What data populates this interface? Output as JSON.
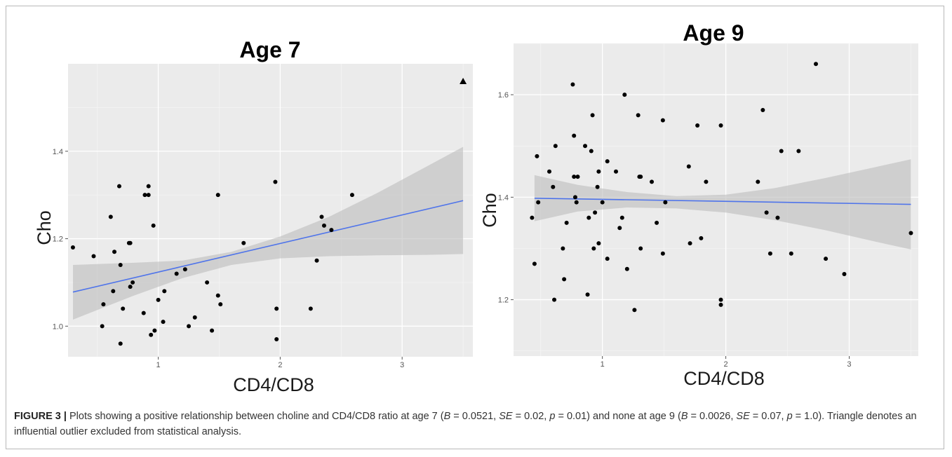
{
  "chart_data": [
    {
      "type": "scatter",
      "title": "Age 7",
      "xlabel": "CD4/CD8",
      "ylabel": "Cho",
      "xlim": [
        0.26,
        3.58
      ],
      "ylim": [
        0.93,
        1.6
      ],
      "x_ticks": [
        1,
        2,
        3
      ],
      "y_ticks": [
        1.0,
        1.2,
        1.4
      ],
      "x_tick_labels": [
        "1",
        "2",
        "3"
      ],
      "y_tick_labels": [
        "1.0",
        "1.2",
        "1.4"
      ],
      "grid": true,
      "background": "#ebebeb",
      "points": [
        [
          0.3,
          1.18
        ],
        [
          0.47,
          1.16
        ],
        [
          0.54,
          1.0
        ],
        [
          0.55,
          1.05
        ],
        [
          0.61,
          1.25
        ],
        [
          0.63,
          1.08
        ],
        [
          0.64,
          1.17
        ],
        [
          0.68,
          1.32
        ],
        [
          0.69,
          1.14
        ],
        [
          0.69,
          0.96
        ],
        [
          0.71,
          1.04
        ],
        [
          0.76,
          1.19
        ],
        [
          0.77,
          1.19
        ],
        [
          0.77,
          1.09
        ],
        [
          0.79,
          1.1
        ],
        [
          0.88,
          1.03
        ],
        [
          0.89,
          1.3
        ],
        [
          0.92,
          1.32
        ],
        [
          0.92,
          1.3
        ],
        [
          0.94,
          0.98
        ],
        [
          0.96,
          1.23
        ],
        [
          0.97,
          0.99
        ],
        [
          1.0,
          1.06
        ],
        [
          1.04,
          1.01
        ],
        [
          1.05,
          1.08
        ],
        [
          1.15,
          1.12
        ],
        [
          1.22,
          1.13
        ],
        [
          1.25,
          1.0
        ],
        [
          1.3,
          1.02
        ],
        [
          1.4,
          1.1
        ],
        [
          1.44,
          0.99
        ],
        [
          1.49,
          1.3
        ],
        [
          1.49,
          1.07
        ],
        [
          1.51,
          1.05
        ],
        [
          1.7,
          1.19
        ],
        [
          1.96,
          1.33
        ],
        [
          1.97,
          1.04
        ],
        [
          1.97,
          0.97
        ],
        [
          2.25,
          1.04
        ],
        [
          2.3,
          1.15
        ],
        [
          2.34,
          1.25
        ],
        [
          2.36,
          1.23
        ],
        [
          2.42,
          1.22
        ],
        [
          2.59,
          1.3
        ]
      ],
      "outlier": [
        3.5,
        1.56
      ],
      "fit": {
        "x": [
          0.3,
          3.5
        ],
        "y": [
          1.078,
          1.287
        ],
        "color": "#4f74ea"
      },
      "ci_band": {
        "x": [
          0.3,
          0.8,
          1.2,
          1.6,
          2.0,
          2.4,
          2.8,
          3.2,
          3.5
        ],
        "lower": [
          1.015,
          1.07,
          1.11,
          1.14,
          1.155,
          1.16,
          1.162,
          1.163,
          1.165
        ],
        "upper": [
          1.14,
          1.145,
          1.15,
          1.17,
          1.205,
          1.25,
          1.305,
          1.365,
          1.41
        ]
      }
    },
    {
      "type": "scatter",
      "title": "Age 9",
      "xlabel": "CD4/CD8",
      "ylabel": "Cho",
      "xlim": [
        0.28,
        3.56
      ],
      "ylim": [
        1.09,
        1.7
      ],
      "x_ticks": [
        1,
        2,
        3
      ],
      "y_ticks": [
        1.2,
        1.4,
        1.6
      ],
      "x_tick_labels": [
        "1",
        "2",
        "3"
      ],
      "y_tick_labels": [
        "1.2",
        "1.4",
        "1.6"
      ],
      "grid": true,
      "background": "#ebebeb",
      "points": [
        [
          0.43,
          1.36
        ],
        [
          0.45,
          1.27
        ],
        [
          0.47,
          1.48
        ],
        [
          0.48,
          1.39
        ],
        [
          0.57,
          1.45
        ],
        [
          0.6,
          1.42
        ],
        [
          0.61,
          1.2
        ],
        [
          0.62,
          1.5
        ],
        [
          0.68,
          1.3
        ],
        [
          0.69,
          1.24
        ],
        [
          0.71,
          1.35
        ],
        [
          0.76,
          1.62
        ],
        [
          0.77,
          1.52
        ],
        [
          0.77,
          1.44
        ],
        [
          0.78,
          1.4
        ],
        [
          0.79,
          1.39
        ],
        [
          0.8,
          1.44
        ],
        [
          0.86,
          1.5
        ],
        [
          0.88,
          1.21
        ],
        [
          0.89,
          1.36
        ],
        [
          0.91,
          1.49
        ],
        [
          0.92,
          1.56
        ],
        [
          0.93,
          1.3
        ],
        [
          0.94,
          1.37
        ],
        [
          0.96,
          1.42
        ],
        [
          0.97,
          1.45
        ],
        [
          0.97,
          1.31
        ],
        [
          1.0,
          1.39
        ],
        [
          1.04,
          1.47
        ],
        [
          1.04,
          1.28
        ],
        [
          1.11,
          1.45
        ],
        [
          1.14,
          1.34
        ],
        [
          1.16,
          1.36
        ],
        [
          1.18,
          1.6
        ],
        [
          1.2,
          1.26
        ],
        [
          1.26,
          1.18
        ],
        [
          1.29,
          1.56
        ],
        [
          1.3,
          1.44
        ],
        [
          1.31,
          1.44
        ],
        [
          1.31,
          1.3
        ],
        [
          1.4,
          1.43
        ],
        [
          1.44,
          1.35
        ],
        [
          1.49,
          1.55
        ],
        [
          1.49,
          1.29
        ],
        [
          1.51,
          1.39
        ],
        [
          1.7,
          1.46
        ],
        [
          1.71,
          1.31
        ],
        [
          1.77,
          1.54
        ],
        [
          1.8,
          1.32
        ],
        [
          1.84,
          1.43
        ],
        [
          1.96,
          1.54
        ],
        [
          1.96,
          1.2
        ],
        [
          1.96,
          1.19
        ],
        [
          2.26,
          1.43
        ],
        [
          2.3,
          1.57
        ],
        [
          2.33,
          1.37
        ],
        [
          2.36,
          1.29
        ],
        [
          2.42,
          1.36
        ],
        [
          2.45,
          1.49
        ],
        [
          2.53,
          1.29
        ],
        [
          2.59,
          1.49
        ],
        [
          2.73,
          1.66
        ],
        [
          2.81,
          1.28
        ],
        [
          2.96,
          1.25
        ],
        [
          3.5,
          1.33
        ]
      ],
      "fit": {
        "x": [
          0.45,
          3.5
        ],
        "y": [
          1.398,
          1.386
        ],
        "color": "#4f74ea"
      },
      "ci_band": {
        "x": [
          0.45,
          0.8,
          1.2,
          1.6,
          2.0,
          2.4,
          2.8,
          3.2,
          3.5
        ],
        "lower": [
          1.353,
          1.372,
          1.38,
          1.378,
          1.37,
          1.355,
          1.336,
          1.314,
          1.298
        ],
        "upper": [
          1.443,
          1.424,
          1.41,
          1.402,
          1.405,
          1.418,
          1.437,
          1.458,
          1.474
        ]
      }
    }
  ],
  "caption": {
    "label": "FIGURE 3 |",
    "segments": [
      {
        "text": " Plots showing a positive relationship between choline and CD4/CD8 ratio at age 7 (",
        "italic": false
      },
      {
        "text": "B",
        "italic": true
      },
      {
        "text": " = 0.0521, ",
        "italic": false
      },
      {
        "text": "SE",
        "italic": true
      },
      {
        "text": " = 0.02, ",
        "italic": false
      },
      {
        "text": "p",
        "italic": true
      },
      {
        "text": " = 0.01) and none at age 9 (",
        "italic": false
      },
      {
        "text": "B",
        "italic": true
      },
      {
        "text": " = 0.0026, ",
        "italic": false
      },
      {
        "text": "SE",
        "italic": true
      },
      {
        "text": " = 0.07, ",
        "italic": false
      },
      {
        "text": "p",
        "italic": true
      },
      {
        "text": " = 1.0). Triangle denotes an influential outlier excluded from statistical analysis.",
        "italic": false
      }
    ]
  }
}
